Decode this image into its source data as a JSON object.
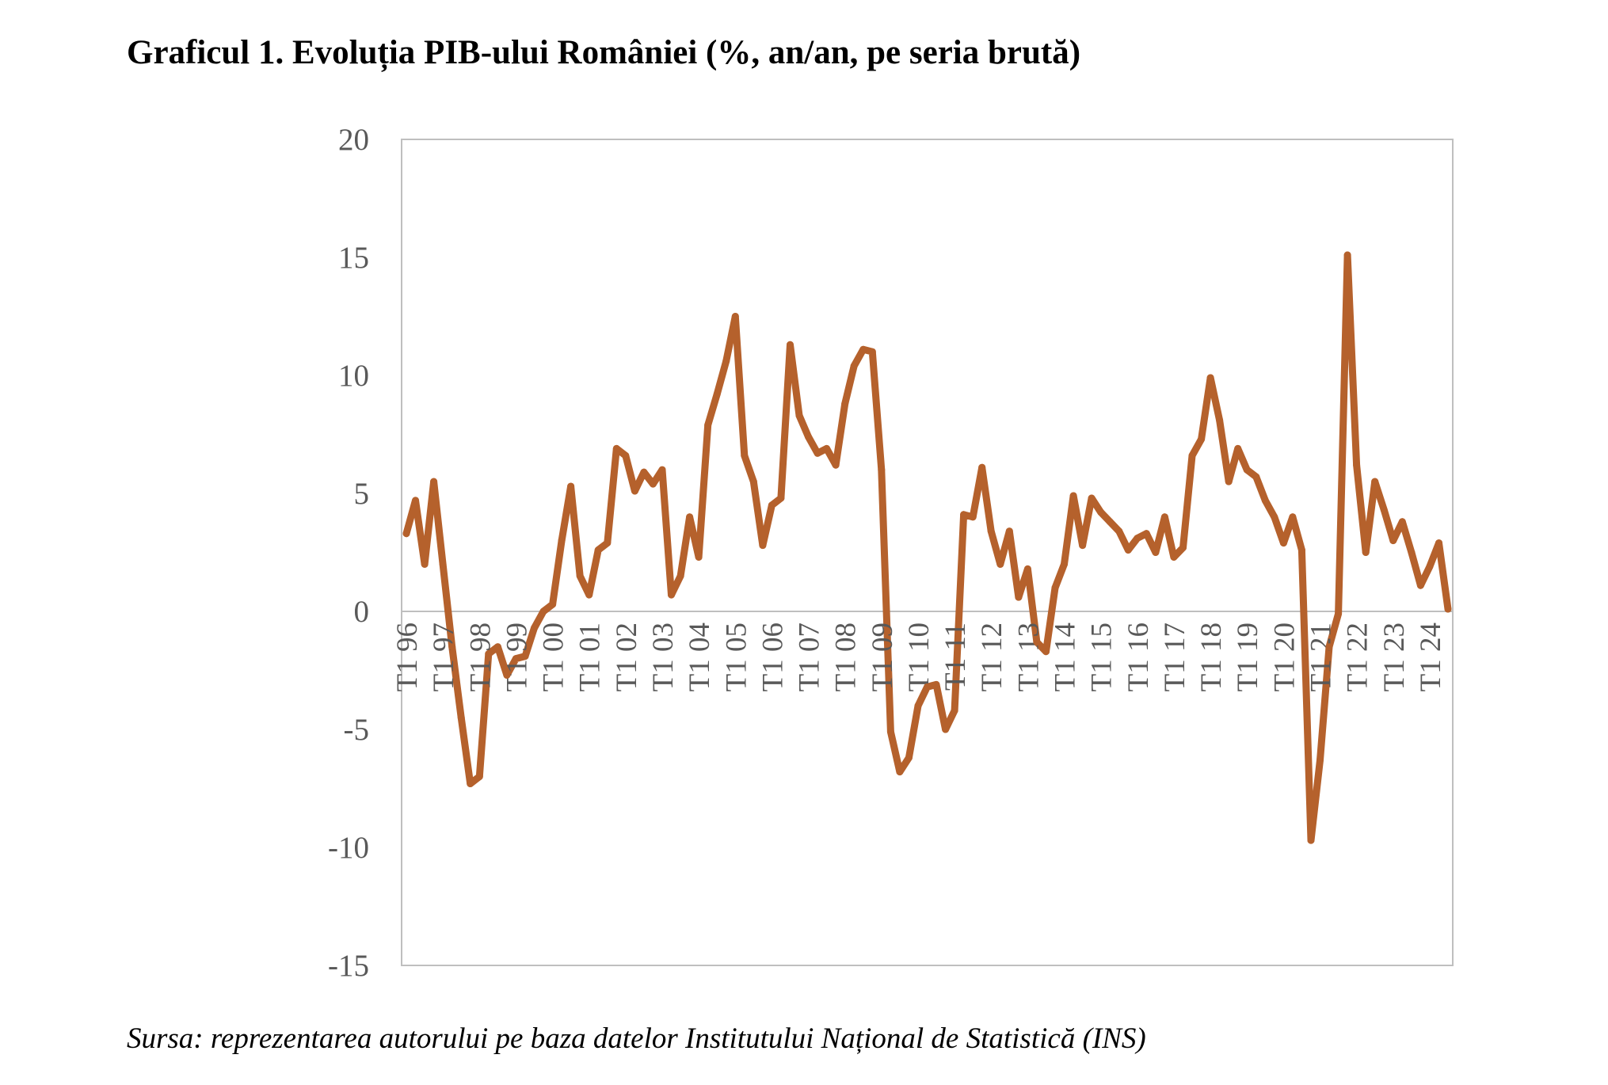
{
  "title": "Graficul 1. Evoluția PIB-ului României (%, an/an, pe seria brută)",
  "source": "Sursa: reprezentarea autorului pe baza datelor Institutului Național de Statistică (INS)",
  "chart_data": {
    "type": "line",
    "title": "Graficul 1. Evoluția PIB-ului României (%, an/an, pe seria brută)",
    "xlabel": "",
    "ylabel": "",
    "ylim": [
      -15,
      20
    ],
    "yticks": [
      20,
      15,
      10,
      5,
      0,
      -5,
      -10,
      -15
    ],
    "xtick_labels": [
      "T1 96",
      "T1 97",
      "T1 98",
      "T1 99",
      "T1 00",
      "T1 01",
      "T1 02",
      "T1 03",
      "T1 04",
      "T1 05",
      "T1 06",
      "T1 07",
      "T1 08",
      "T1 09",
      "T1 10",
      "T1 11",
      "T1 12",
      "T1 13",
      "T1 14",
      "T1 15",
      "T1 16",
      "T1 17",
      "T1 18",
      "T1 19",
      "T1 20",
      "T1 21",
      "T1 22",
      "T1 23",
      "T1 24"
    ],
    "grid": false,
    "legend": "none",
    "line_color": "#B5612C",
    "series": [
      {
        "values": [
          3.3,
          4.7,
          2.0,
          5.5,
          2.0,
          -1.5,
          -4.5,
          -7.3,
          -7.0,
          -1.8,
          -1.5,
          -2.7,
          -2.0,
          -1.9,
          -0.7,
          0.0,
          0.3,
          3.0,
          5.3,
          1.5,
          0.7,
          2.6,
          2.9,
          6.9,
          6.6,
          5.1,
          5.9,
          5.4,
          6.0,
          0.7,
          1.5,
          4.0,
          2.3,
          7.9,
          9.2,
          10.6,
          12.5,
          6.6,
          5.5,
          2.8,
          4.5,
          4.8,
          11.3,
          8.3,
          7.4,
          6.7,
          6.9,
          6.2,
          8.8,
          10.4,
          11.1,
          11.0,
          6.0,
          -5.1,
          -6.8,
          -6.2,
          -4.0,
          -3.2,
          -3.1,
          -5.0,
          -4.2,
          4.1,
          4.0,
          6.1,
          3.4,
          2.0,
          3.4,
          0.6,
          1.8,
          -1.3,
          -1.7,
          1.0,
          2.0,
          4.9,
          2.8,
          4.8,
          4.2,
          3.8,
          3.4,
          2.6,
          3.1,
          3.3,
          2.5,
          4.0,
          2.3,
          2.7,
          6.6,
          7.3,
          9.9,
          8.1,
          5.5,
          6.9,
          6.0,
          5.7,
          4.7,
          4.0,
          2.9,
          4.0,
          2.6,
          -9.7,
          -6.3,
          -1.5,
          -0.1,
          15.1,
          6.2,
          2.5,
          5.5,
          4.3,
          3.0,
          3.8,
          2.5,
          1.1,
          1.9,
          2.9,
          0.1
        ]
      }
    ]
  }
}
